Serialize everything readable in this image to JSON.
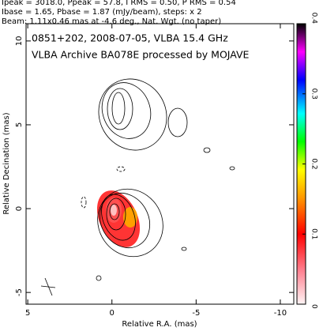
{
  "chart_data": {
    "type": "contour",
    "header": [
      "Ipeak = 3018.0, Ppeak = 57.8, I RMS = 0.50, P RMS = 0.54",
      "Ibase = 1.65, Pbase = 1.87 (mJy/beam), steps: x 2",
      "Beam: 1.11x0.46 mas at -4.6 deg., Nat. Wgt. (no taper)"
    ],
    "annotations": [
      "0851+202, 2008-07-05, VLBA 15.4 GHz",
      "VLBA Archive BA078E processed by MOJAVE"
    ],
    "x_label": "Relative R.A. (mas)",
    "y_label": "Relative Decination (mas)",
    "xlim": [
      5.1,
      -10.8
    ],
    "xticks": [
      5,
      0,
      -5,
      -10
    ],
    "ylim": [
      -5.7,
      11.03
    ],
    "yticks": [
      -5,
      0,
      5,
      10
    ],
    "colorbar": {
      "lim": [
        0,
        0.4
      ],
      "ticks": [
        0,
        0.1,
        0.2,
        0.3,
        0.4
      ]
    }
  }
}
